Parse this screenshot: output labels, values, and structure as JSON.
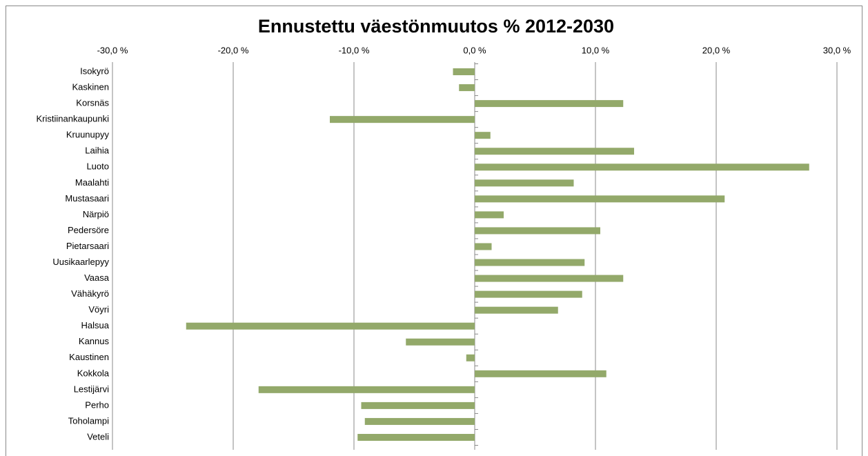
{
  "chart_data": {
    "type": "hbar",
    "title": "Ennustettu väestönmuutos % 2012-2030",
    "categories": [
      "Isokyrö",
      "Kaskinen",
      "Korsnäs",
      "Kristiinankaupunki",
      "Kruunupyy",
      "Laihia",
      "Luoto",
      "Maalahti",
      "Mustasaari",
      "Närpiö",
      "Pedersöre",
      "Pietarsaari",
      "Uusikaarlepyy",
      "Vaasa",
      "Vähäkyrö",
      "Vöyri",
      "Halsua",
      "Kannus",
      "Kaustinen",
      "Kokkola",
      "Lestijärvi",
      "Perho",
      "Toholampi",
      "Veteli"
    ],
    "values": [
      -1.8,
      -1.3,
      12.3,
      -12.0,
      1.3,
      13.2,
      27.7,
      8.2,
      20.7,
      2.4,
      10.4,
      1.4,
      9.1,
      12.3,
      8.9,
      6.9,
      -23.9,
      -5.7,
      -0.7,
      10.9,
      -17.9,
      -9.4,
      -9.1,
      -9.7
    ],
    "color": "#93a96a",
    "xlim": [
      -30,
      30
    ],
    "xticks": [
      {
        "value": -30,
        "label": "-30,0 %"
      },
      {
        "value": -20,
        "label": "-20,0 %"
      },
      {
        "value": -10,
        "label": "-10,0 %"
      },
      {
        "value": 0,
        "label": "0,0 %"
      },
      {
        "value": 10,
        "label": "10,0 %"
      },
      {
        "value": 20,
        "label": "20,0 %"
      },
      {
        "value": 30,
        "label": "30,0 %"
      }
    ],
    "grid": true
  }
}
